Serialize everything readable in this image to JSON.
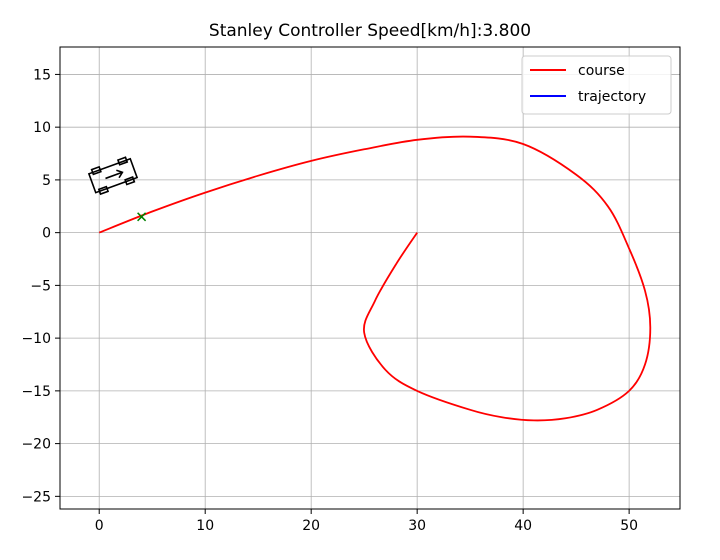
{
  "chart_data": {
    "type": "line",
    "title": "Stanley Controller Speed[km/h]:3.800",
    "xlabel": "",
    "ylabel": "",
    "xlim": [
      -3.7,
      54.8
    ],
    "ylim": [
      -26.2,
      17.6
    ],
    "xticks": [
      0,
      10,
      20,
      30,
      40,
      50
    ],
    "yticks": [
      15,
      10,
      5,
      0,
      -5,
      -10,
      -15,
      -20,
      -25
    ],
    "xtick_labels": [
      "0",
      "10",
      "20",
      "30",
      "40",
      "50"
    ],
    "ytick_labels": [
      "15",
      "10",
      "5",
      "0",
      "−5",
      "−10",
      "−15",
      "−20",
      "−25"
    ],
    "grid": true,
    "legend_position": "top-right",
    "series": [
      {
        "name": "course",
        "color": "#ff0000",
        "x": [
          0,
          5,
          10,
          15,
          20,
          25,
          30,
          35,
          40,
          45,
          48,
          50,
          51.5,
          52,
          51.5,
          50,
          47,
          44,
          41,
          38,
          35,
          30,
          27,
          25,
          26,
          28,
          30
        ],
        "y": [
          0,
          2,
          3.8,
          5.4,
          6.8,
          7.9,
          8.8,
          9.1,
          8.4,
          5.5,
          2.5,
          -1.5,
          -5.5,
          -9,
          -12.5,
          -15,
          -16.8,
          -17.6,
          -17.8,
          -17.5,
          -16.8,
          -15,
          -13,
          -9.5,
          -6.5,
          -3,
          0
        ]
      },
      {
        "name": "trajectory",
        "color": "#0000ff",
        "x": [],
        "y": []
      }
    ],
    "target_marker": {
      "x": 4,
      "y": 1.5,
      "symbol": "x",
      "color": "#008000"
    },
    "vehicle": {
      "x": 1.3,
      "y": 5.4,
      "yaw_deg": 20,
      "color": "#000000"
    }
  }
}
